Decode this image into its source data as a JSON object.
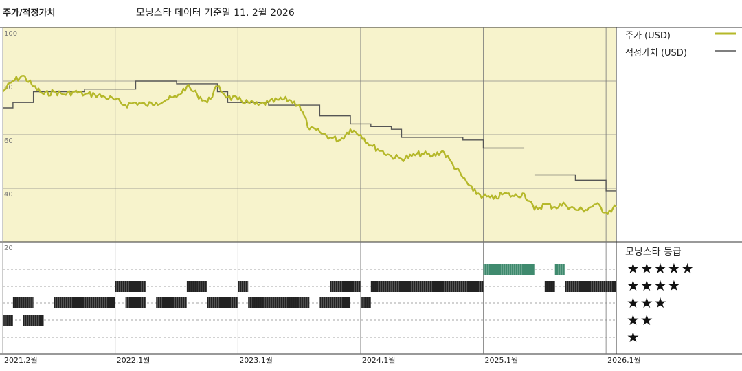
{
  "header": {
    "title": "주가/적정가치",
    "subtitle": "모닝스타 데이터 기준일 11. 2월 2026"
  },
  "legend": {
    "price_label": "주가 (USD)",
    "fair_label": "적정가치 (USD)",
    "price_color": "#b5b82a",
    "fair_color": "#555555"
  },
  "rating_section": {
    "title": "모닝스타 등급",
    "stars": [
      "★★★★★",
      "★★★★",
      "★★★",
      "★★",
      "★"
    ],
    "five_star_color": "#3f8a6e",
    "other_star_color": "#222222"
  },
  "chart_data": {
    "type": "line",
    "title": "주가/적정가치",
    "y_ticks": [
      "100",
      "80",
      "60",
      "40",
      "20"
    ],
    "x_ticks": [
      "2021,2월",
      "2022,1월",
      "2023,1월",
      "2024,1월",
      "2025,1월",
      "2026,1월"
    ],
    "ylim": [
      20,
      100
    ],
    "series": [
      {
        "name": "주가 (USD)",
        "points": [
          [
            "2021-02",
            76
          ],
          [
            "2021-03",
            80
          ],
          [
            "2021-04",
            82
          ],
          [
            "2021-05",
            78
          ],
          [
            "2021-06",
            75
          ],
          [
            "2021-07",
            76
          ],
          [
            "2021-08",
            75
          ],
          [
            "2021-09",
            76
          ],
          [
            "2021-10",
            75
          ],
          [
            "2021-11",
            75
          ],
          [
            "2021-12",
            74
          ],
          [
            "2022-01",
            73
          ],
          [
            "2022-02",
            71
          ],
          [
            "2022-03",
            72
          ],
          [
            "2022-04",
            71
          ],
          [
            "2022-05",
            72
          ],
          [
            "2022-06",
            73
          ],
          [
            "2022-07",
            74
          ],
          [
            "2022-08",
            78
          ],
          [
            "2022-09",
            75
          ],
          [
            "2022-10",
            72
          ],
          [
            "2022-11",
            78
          ],
          [
            "2022-12",
            74
          ],
          [
            "2023-01",
            73
          ],
          [
            "2023-02",
            72
          ],
          [
            "2023-03",
            71
          ],
          [
            "2023-04",
            72
          ],
          [
            "2023-05",
            73
          ],
          [
            "2023-06",
            73
          ],
          [
            "2023-07",
            71
          ],
          [
            "2023-08",
            62
          ],
          [
            "2023-09",
            61
          ],
          [
            "2023-10",
            59
          ],
          [
            "2023-11",
            58
          ],
          [
            "2023-12",
            62
          ],
          [
            "2024-01",
            60
          ],
          [
            "2024-02",
            56
          ],
          [
            "2024-03",
            54
          ],
          [
            "2024-04",
            52
          ],
          [
            "2024-05",
            51
          ],
          [
            "2024-06",
            52
          ],
          [
            "2024-07",
            53
          ],
          [
            "2024-08",
            52
          ],
          [
            "2024-09",
            54
          ],
          [
            "2024-10",
            49
          ],
          [
            "2024-11",
            44
          ],
          [
            "2024-12",
            39
          ],
          [
            "2025-01",
            37
          ],
          [
            "2025-02",
            36
          ],
          [
            "2025-03",
            38
          ],
          [
            "2025-04",
            37
          ],
          [
            "2025-05",
            38
          ],
          [
            "2025-06",
            32
          ],
          [
            "2025-07",
            34
          ],
          [
            "2025-08",
            33
          ],
          [
            "2025-09",
            34
          ],
          [
            "2025-10",
            32
          ],
          [
            "2025-11",
            32
          ],
          [
            "2025-12",
            34
          ],
          [
            "2026-01",
            31
          ],
          [
            "2026-02",
            33
          ]
        ]
      },
      {
        "name": "적정가치 (USD)",
        "steps": [
          [
            "2021-02",
            70
          ],
          [
            "2021-03",
            72
          ],
          [
            "2021-05",
            76
          ],
          [
            "2021-08",
            76
          ],
          [
            "2021-10",
            77
          ],
          [
            "2022-01",
            77
          ],
          [
            "2022-03",
            80
          ],
          [
            "2022-06",
            80
          ],
          [
            "2022-07",
            79
          ],
          [
            "2022-11",
            76
          ],
          [
            "2022-12",
            72
          ],
          [
            "2023-04",
            71
          ],
          [
            "2023-09",
            67
          ],
          [
            "2023-12",
            64
          ],
          [
            "2024-02",
            63
          ],
          [
            "2024-04",
            62
          ],
          [
            "2024-05",
            59
          ],
          [
            "2024-08",
            59
          ],
          [
            "2024-11",
            58
          ],
          [
            "2025-01",
            55
          ],
          [
            "2025-05",
            55,
            true
          ],
          [
            "2025-06",
            45
          ],
          [
            "2025-10",
            43
          ],
          [
            "2026-01",
            39
          ],
          [
            "2026-02",
            39
          ]
        ]
      }
    ],
    "star_rating_history": {
      "5": [
        [
          "2025-01",
          "2025-06"
        ],
        [
          "2025-08",
          "2025-09"
        ]
      ],
      "4": [
        [
          "2022-01",
          "2022-04"
        ],
        [
          "2022-08",
          "2022-10"
        ],
        [
          "2023-01",
          "2023-02"
        ],
        [
          "2023-10",
          "2024-01"
        ],
        [
          "2024-02",
          "2024-04"
        ],
        [
          "2024-04",
          "2025-01"
        ],
        [
          "2025-07",
          "2025-08"
        ],
        [
          "2025-09",
          "2026-02"
        ]
      ],
      "3": [
        [
          "2021-03",
          "2021-05"
        ],
        [
          "2021-07",
          "2022-01"
        ],
        [
          "2022-02",
          "2022-04"
        ],
        [
          "2022-05",
          "2022-08"
        ],
        [
          "2022-10",
          "2023-01"
        ],
        [
          "2023-02",
          "2023-08"
        ],
        [
          "2023-09",
          "2023-12"
        ],
        [
          "2024-01",
          "2024-02"
        ]
      ],
      "2": [
        [
          "2021-02",
          "2021-03"
        ],
        [
          "2021-04",
          "2021-06"
        ]
      ]
    }
  }
}
